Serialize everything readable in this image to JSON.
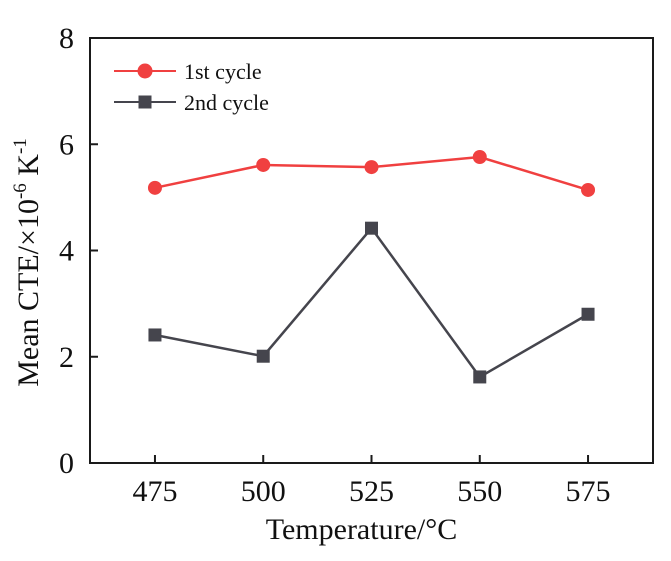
{
  "chart_data": {
    "type": "line",
    "title": "",
    "xlabel": "Temperature/°C",
    "ylabel": {
      "prefix": "Mean CTE/×10",
      "exp1": "-6",
      "mid": " K",
      "exp2": "-1"
    },
    "x": [
      475,
      500,
      525,
      550,
      575
    ],
    "xlim": [
      460,
      590
    ],
    "ylim": [
      0,
      8
    ],
    "xticks": [
      475,
      500,
      525,
      550,
      575
    ],
    "yticks": [
      0,
      2,
      4,
      6,
      8
    ],
    "grid": false,
    "legend_position": "top-left",
    "series": [
      {
        "name": "1st cycle",
        "color": "#f04040",
        "marker": "circle",
        "values": [
          5.18,
          5.61,
          5.57,
          5.76,
          5.14
        ]
      },
      {
        "name": "2nd cycle",
        "color": "#45454d",
        "marker": "square",
        "values": [
          2.41,
          2.01,
          4.42,
          1.62,
          2.8
        ]
      }
    ]
  }
}
